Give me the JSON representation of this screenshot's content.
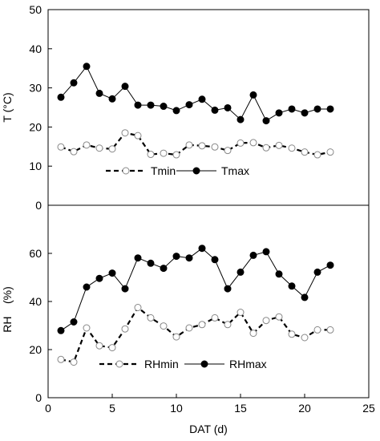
{
  "chart_data": [
    {
      "type": "line",
      "ylabel": "T (°C)",
      "ylim": [
        0,
        50
      ],
      "yticks": [
        0,
        10,
        20,
        30,
        40,
        50
      ],
      "xlim": [
        0,
        25
      ],
      "grid": false,
      "legend_position": "bottom-center",
      "x": [
        1,
        2,
        3,
        4,
        5,
        6,
        7,
        8,
        9,
        10,
        11,
        12,
        13,
        14,
        15,
        16,
        17,
        18,
        19,
        20,
        21,
        22
      ],
      "series": [
        {
          "name": "Tmin",
          "line_style": "dashed",
          "marker": "open-circle",
          "values": [
            14.9,
            13.7,
            15.4,
            14.6,
            14.4,
            18.5,
            17.8,
            13.0,
            13.3,
            12.9,
            15.4,
            15.2,
            14.9,
            14.0,
            15.9,
            16.0,
            14.7,
            15.3,
            14.6,
            13.6,
            12.9,
            13.6
          ]
        },
        {
          "name": "Tmax",
          "line_style": "solid",
          "marker": "filled-circle",
          "values": [
            27.6,
            31.3,
            35.5,
            28.6,
            27.2,
            30.4,
            25.6,
            25.6,
            25.3,
            24.2,
            25.7,
            27.1,
            24.3,
            24.9,
            21.9,
            28.2,
            21.6,
            23.6,
            24.6,
            23.6,
            24.6,
            24.6
          ]
        }
      ]
    },
    {
      "type": "line",
      "xlabel": "DAT (d)",
      "ylabel": "RH    (%)",
      "ylim": [
        0,
        80
      ],
      "yticks": [
        0,
        20,
        40,
        60
      ],
      "xlim": [
        0,
        25
      ],
      "xticks": [
        0,
        5,
        10,
        15,
        20,
        25
      ],
      "grid": false,
      "legend_position": "bottom-center",
      "x": [
        1,
        2,
        3,
        4,
        5,
        6,
        7,
        8,
        9,
        10,
        11,
        12,
        13,
        14,
        15,
        16,
        17,
        18,
        19,
        20,
        21,
        22
      ],
      "series": [
        {
          "name": "RHmin",
          "line_style": "dashed",
          "marker": "open-circle",
          "values": [
            15.9,
            14.8,
            29.0,
            21.6,
            20.8,
            28.6,
            37.5,
            33.2,
            29.8,
            25.3,
            29.0,
            30.4,
            33.2,
            30.4,
            35.5,
            26.8,
            32.1,
            33.6,
            26.4,
            25.0,
            28.2,
            28.2
          ]
        },
        {
          "name": "RHmax",
          "line_style": "solid",
          "marker": "filled-circle",
          "values": [
            27.9,
            31.5,
            46.0,
            49.6,
            51.8,
            45.3,
            58.1,
            55.9,
            53.8,
            58.8,
            58.1,
            62.1,
            57.4,
            45.3,
            52.2,
            59.2,
            60.7,
            51.4,
            46.4,
            41.7,
            52.2,
            55.1
          ]
        }
      ]
    }
  ]
}
